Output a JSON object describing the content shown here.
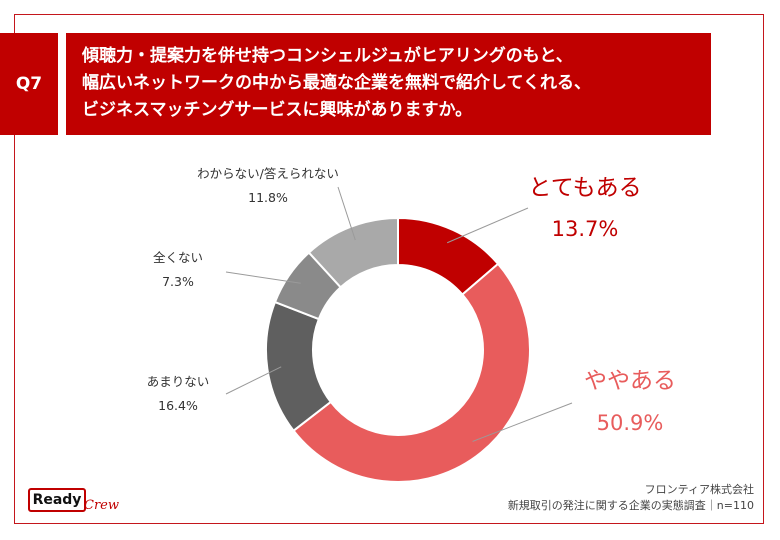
{
  "header": {
    "tag": "Q7",
    "question": "傾聴力・提案力を併せ持つコンシェルジュがヒアリングのもと、\n幅広いネットワークの中から最適な企業を無料で紹介してくれる、\nビジネスマッチングサービスに興味がありますか。"
  },
  "chart_data": {
    "type": "pie",
    "donut": true,
    "categories": [
      "とてもある",
      "ややある",
      "あまりない",
      "全くない",
      "わからない/答えられない"
    ],
    "values": [
      13.7,
      50.9,
      16.4,
      7.3,
      11.8
    ],
    "value_labels": [
      "13.7%",
      "50.9%",
      "16.4%",
      "7.3%",
      "11.8%"
    ],
    "colors": [
      "#c00000",
      "#e85c5c",
      "#5f5f5f",
      "#8a8a8a",
      "#a9a9a9"
    ],
    "label_colors": [
      "#c00000",
      "#e85c5c",
      "#333333",
      "#333333",
      "#333333"
    ]
  },
  "source": {
    "company": "フロンティア株式会社",
    "survey": "新規取引の発注に関する企業の実態調査｜n=110"
  },
  "logo": {
    "main": "Ready",
    "sub": "Crew"
  }
}
